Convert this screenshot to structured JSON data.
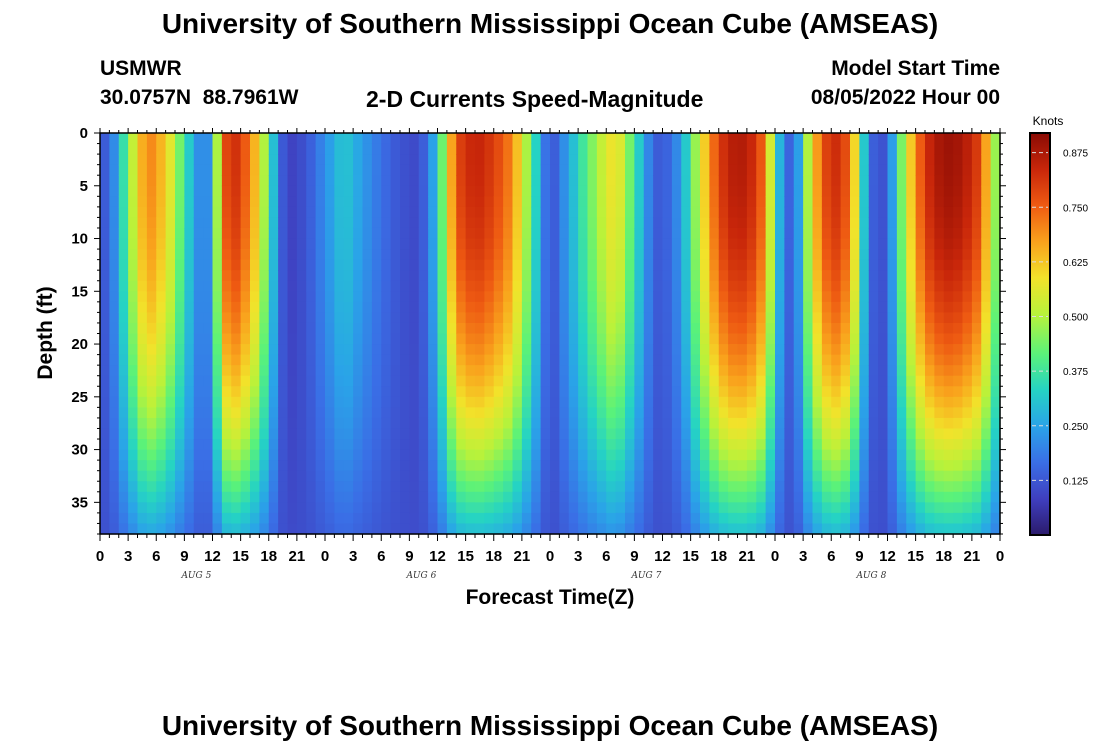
{
  "title": "University of Southern Mississippi Ocean Cube (AMSEAS)",
  "footer_title": "University of Southern Mississippi Ocean Cube (AMSEAS)",
  "station": {
    "name": "USMWR",
    "coords": "30.0757N  88.7961W"
  },
  "model": {
    "start_label": "Model Start Time",
    "start_value": "08/05/2022 Hour 00"
  },
  "chart_data": {
    "type": "heatmap",
    "title": "2-D Currents Speed-Magnitude",
    "xlabel": "Forecast Time(Z)",
    "ylabel": "Depth (ft)",
    "x_ticks": [
      "0",
      "3",
      "6",
      "9",
      "12",
      "15",
      "18",
      "21",
      "0",
      "3",
      "6",
      "9",
      "12",
      "15",
      "18",
      "21",
      "0",
      "3",
      "6",
      "9",
      "12",
      "15",
      "18",
      "21",
      "0",
      "3",
      "6",
      "9",
      "12",
      "15",
      "18",
      "21",
      "0"
    ],
    "x_hours_range": [
      0,
      96
    ],
    "day_labels": [
      {
        "label": "AUG 5",
        "hour": 9
      },
      {
        "label": "AUG 6",
        "hour": 33
      },
      {
        "label": "AUG 7",
        "hour": 57
      },
      {
        "label": "AUG 8",
        "hour": 81
      }
    ],
    "y_ticks": [
      "0",
      "5",
      "10",
      "15",
      "20",
      "25",
      "30",
      "35"
    ],
    "ylim": [
      0,
      38
    ],
    "y_inverted": true,
    "colorbar": {
      "label": "Knots",
      "ticks": [
        "0.125",
        "0.250",
        "0.375",
        "0.500",
        "0.625",
        "0.750",
        "0.875"
      ],
      "range": [
        0,
        0.92
      ]
    },
    "colormap": [
      "#2b1b6b",
      "#3f3fbf",
      "#3a6ee6",
      "#2aa3e8",
      "#25d3c4",
      "#5af27a",
      "#b9f23a",
      "#f2e22a",
      "#f9a11c",
      "#ee5a12",
      "#c8260a",
      "#8a0b04"
    ],
    "surface_profile": {
      "hours": [
        0,
        1,
        2,
        3,
        5,
        7,
        9,
        10,
        11,
        12,
        13,
        14,
        16,
        18,
        19,
        20,
        22,
        24,
        26,
        28,
        30,
        32,
        34,
        35,
        36,
        37,
        38,
        40,
        42,
        44,
        46,
        47,
        48,
        49,
        50,
        52,
        54,
        55,
        56,
        58,
        59,
        60,
        62,
        64,
        66,
        68,
        70,
        71,
        72,
        73,
        74,
        76,
        78,
        80,
        81,
        82,
        83,
        84,
        86,
        88,
        90,
        92,
        94,
        95,
        96
      ],
      "knots": [
        0.12,
        0.15,
        0.28,
        0.45,
        0.72,
        0.62,
        0.38,
        0.26,
        0.18,
        0.26,
        0.72,
        0.85,
        0.72,
        0.42,
        0.18,
        0.08,
        0.12,
        0.22,
        0.32,
        0.24,
        0.17,
        0.12,
        0.1,
        0.18,
        0.32,
        0.55,
        0.78,
        0.85,
        0.8,
        0.7,
        0.42,
        0.25,
        0.1,
        0.18,
        0.26,
        0.42,
        0.55,
        0.6,
        0.5,
        0.26,
        0.15,
        0.12,
        0.24,
        0.55,
        0.8,
        0.88,
        0.82,
        0.7,
        0.38,
        0.18,
        0.12,
        0.62,
        0.85,
        0.75,
        0.45,
        0.18,
        0.1,
        0.14,
        0.55,
        0.82,
        0.9,
        0.88,
        0.78,
        0.55,
        0.4
      ]
    }
  }
}
